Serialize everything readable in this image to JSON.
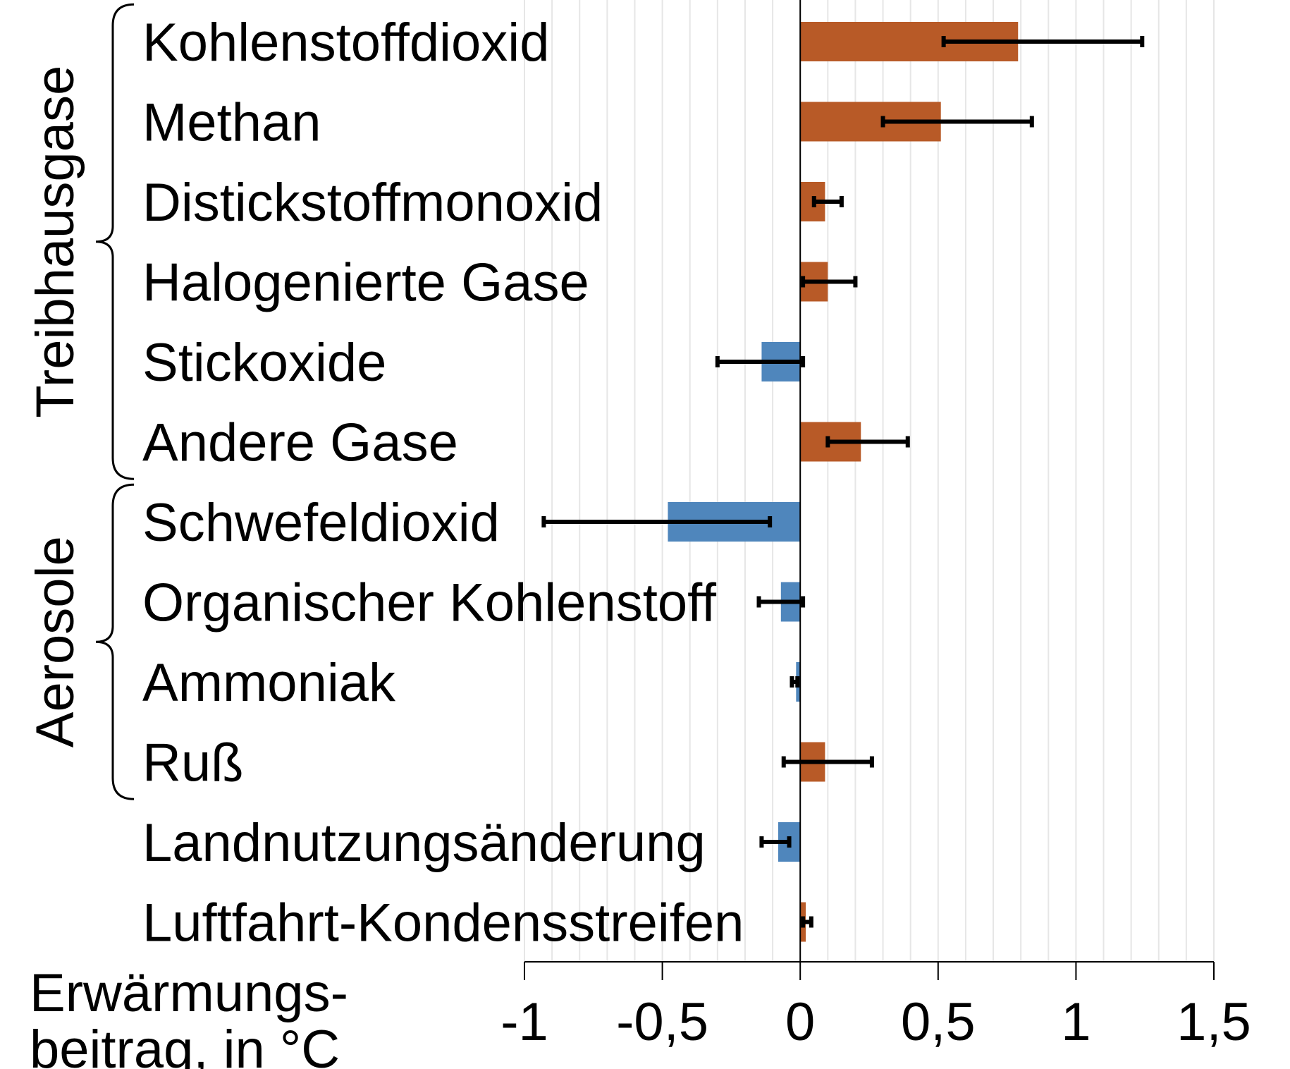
{
  "chart_data": {
    "type": "bar",
    "orientation": "horizontal",
    "categories": [
      "Kohlenstoffdioxid",
      "Methan",
      "Distickstoffmonoxid",
      "Halogenierte Gase",
      "Stickoxide",
      "Andere Gase",
      "Schwefeldioxid",
      "Organischer Kohlenstoff",
      "Ammoniak",
      "Ruß",
      "Landnutzungsänderung",
      "Luftfahrt-Kondensstreifen"
    ],
    "values": [
      0.79,
      0.51,
      0.09,
      0.1,
      -0.14,
      0.22,
      -0.48,
      -0.07,
      -0.015,
      0.09,
      -0.08,
      0.02
    ],
    "error_low": [
      0.52,
      0.3,
      0.05,
      0.01,
      -0.3,
      0.1,
      -0.93,
      -0.15,
      -0.03,
      -0.06,
      -0.14,
      0.01
    ],
    "error_high": [
      1.24,
      0.84,
      0.15,
      0.2,
      0.01,
      0.39,
      -0.11,
      0.01,
      -0.01,
      0.26,
      -0.04,
      0.04
    ],
    "bar_colors": {
      "positive": "#b85a27",
      "negative": "#4f86bc"
    },
    "groups": [
      {
        "label": "Treibhausgase",
        "first": 0,
        "last": 5
      },
      {
        "label": "Aerosole",
        "first": 6,
        "last": 9
      }
    ],
    "xlim": [
      -1,
      1.5
    ],
    "xticks": [
      -1,
      -0.5,
      0,
      0.5,
      1,
      1.5
    ],
    "xtick_labels": [
      "-1",
      "-0,5",
      "0",
      "0,5",
      "1",
      "1,5"
    ],
    "xlabel_lines": [
      "Erwärmungs-",
      "beitrag, in °C"
    ],
    "grid": "vertical minor gridlines"
  }
}
